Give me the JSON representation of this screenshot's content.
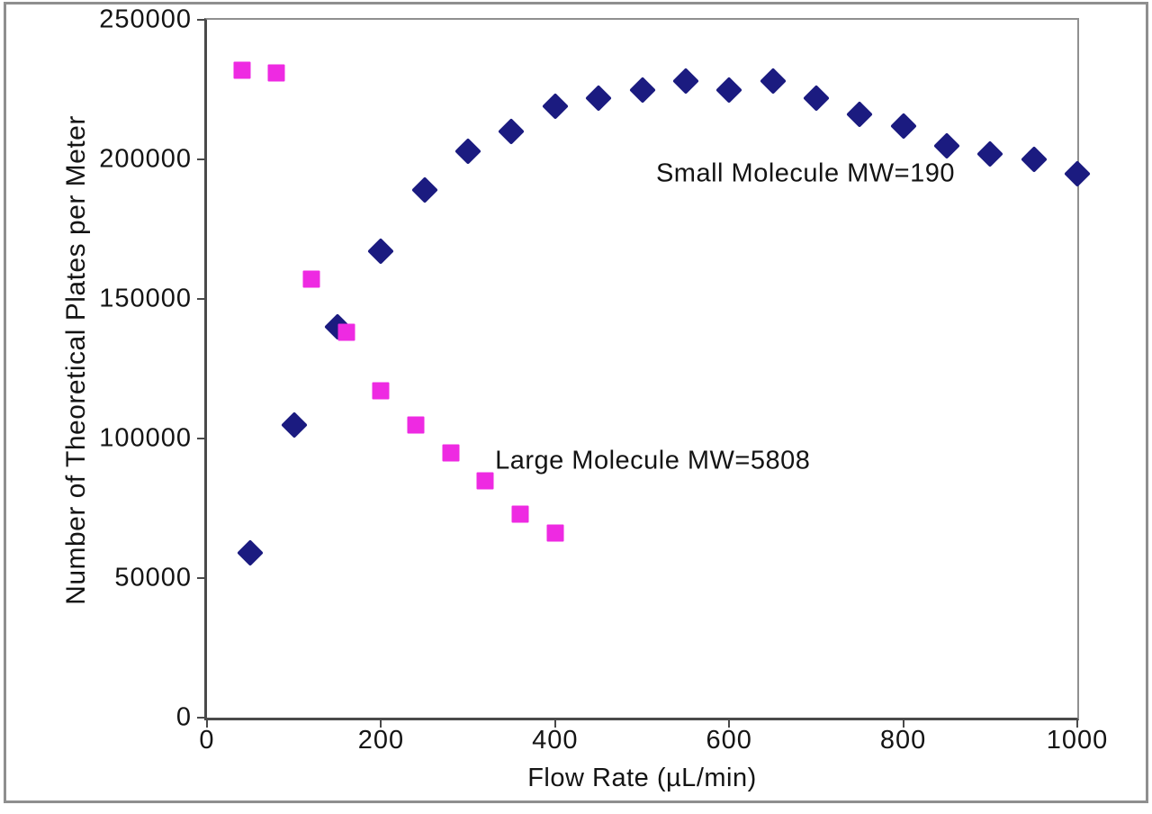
{
  "page": {
    "background": "#ffffff",
    "frame_border_color": "#8f8f8f",
    "axis_line_color": "#4a4a4a",
    "plot_border_color": "#909090",
    "text_color": "#141414"
  },
  "chart_data": {
    "type": "scatter",
    "title": "",
    "xlabel": "Flow Rate (µL/min)",
    "ylabel": "Number of Theoretical Plates per Meter",
    "xlim": [
      0,
      1000
    ],
    "ylim": [
      0,
      250000
    ],
    "x_ticks": [
      0,
      200,
      400,
      600,
      800,
      1000
    ],
    "y_ticks": [
      0,
      50000,
      100000,
      150000,
      200000,
      250000
    ],
    "grid": false,
    "legend_position": "in-plot text annotations",
    "series": [
      {
        "name": "Small Molecule MW=190",
        "marker": "diamond",
        "color": "#1b1b80",
        "points": [
          [
            50,
            59000
          ],
          [
            100,
            105000
          ],
          [
            150,
            140000
          ],
          [
            200,
            167000
          ],
          [
            250,
            189000
          ],
          [
            300,
            203000
          ],
          [
            350,
            210000
          ],
          [
            400,
            219000
          ],
          [
            450,
            222000
          ],
          [
            500,
            225000
          ],
          [
            550,
            228000
          ],
          [
            600,
            225000
          ],
          [
            650,
            228000
          ],
          [
            700,
            222000
          ],
          [
            750,
            216000
          ],
          [
            800,
            212000
          ],
          [
            850,
            205000
          ],
          [
            900,
            202000
          ],
          [
            950,
            200000
          ],
          [
            1000,
            195000
          ]
        ],
        "annotation": {
          "text": "Small Molecule MW=190",
          "x": 516,
          "y": 195000
        }
      },
      {
        "name": "Large Molecule MW=5808",
        "marker": "square",
        "color": "#ee2ae2",
        "points": [
          [
            40,
            232000
          ],
          [
            80,
            231000
          ],
          [
            120,
            157000
          ],
          [
            160,
            138000
          ],
          [
            200,
            117000
          ],
          [
            240,
            105000
          ],
          [
            280,
            95000
          ],
          [
            320,
            85000
          ],
          [
            360,
            73000
          ],
          [
            400,
            66000
          ]
        ],
        "annotation": {
          "text": "Large Molecule MW=5808",
          "x": 331,
          "y": 92000
        }
      }
    ]
  }
}
